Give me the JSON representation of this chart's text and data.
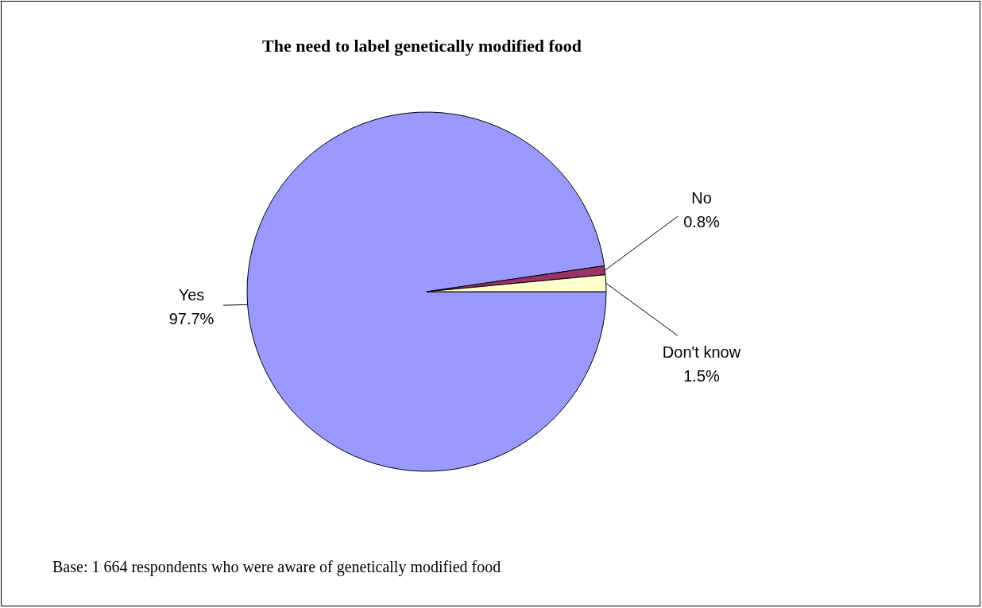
{
  "chart_data": {
    "type": "pie",
    "title": "The need to label genetically modified food",
    "categories": [
      "Yes",
      "No",
      "Don't know"
    ],
    "values": [
      97.7,
      0.8,
      1.5
    ],
    "value_labels": [
      "97.7%",
      "0.8%",
      "1.5%"
    ],
    "colors": [
      "#9999ff",
      "#993366",
      "#ffffcc"
    ],
    "legend": false,
    "annotations": [
      "Base: 1 664 respondents who were aware of genetically modified food"
    ]
  }
}
